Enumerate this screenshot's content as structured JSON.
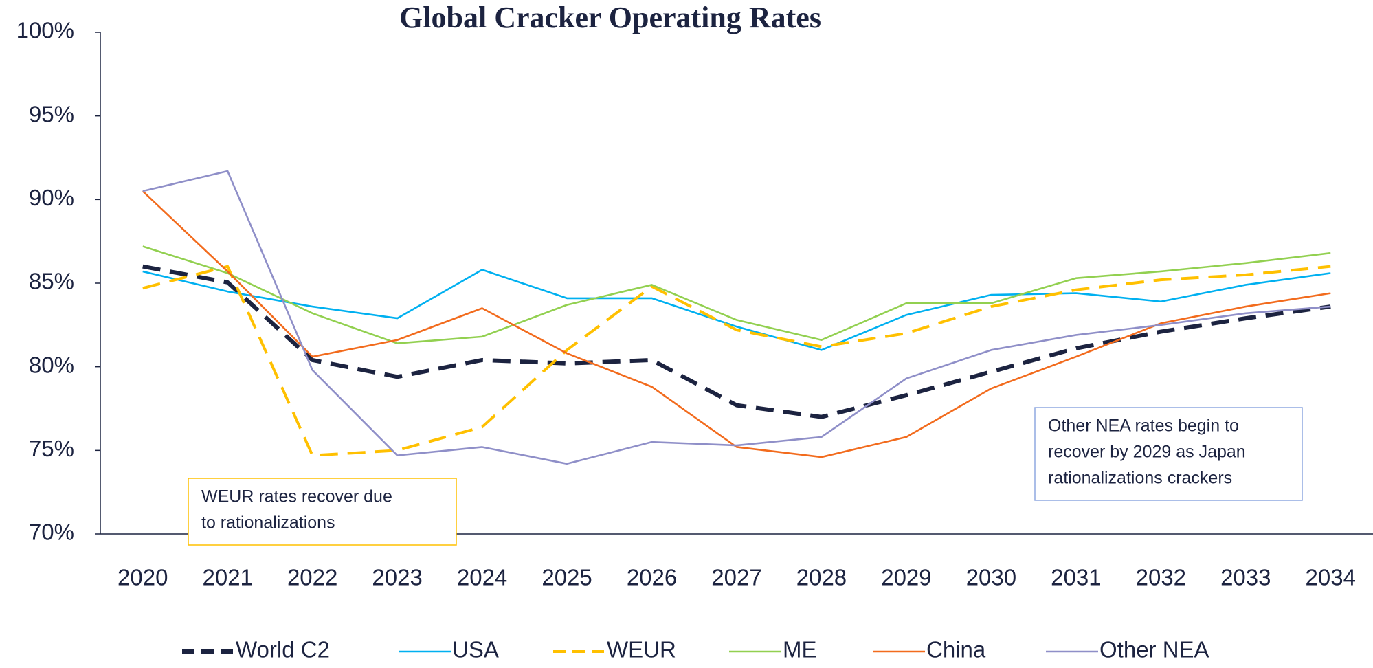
{
  "chart_data": {
    "type": "line",
    "title": "Global Cracker Operating Rates",
    "categories": [
      "2020",
      "2021",
      "2022",
      "2023",
      "2024",
      "2025",
      "2026",
      "2027",
      "2028",
      "2029",
      "2030",
      "2031",
      "2032",
      "2033",
      "2034"
    ],
    "series": [
      {
        "name": "World C2",
        "color": "#1c2340",
        "style": "dashed",
        "values": [
          86.0,
          85.05,
          80.4,
          79.4,
          80.4,
          80.2,
          80.4,
          77.7,
          77.0,
          78.3,
          79.7,
          81.1,
          82.1,
          82.9,
          83.6
        ]
      },
      {
        "name": "USA",
        "color": "#00b0f0",
        "style": "solid",
        "values": [
          85.7,
          84.5,
          83.6,
          82.9,
          85.8,
          84.1,
          84.1,
          82.4,
          81.0,
          83.1,
          84.3,
          84.4,
          83.9,
          84.9,
          85.6
        ]
      },
      {
        "name": "WEUR",
        "color": "#ffc000",
        "style": "dashed",
        "values": [
          84.7,
          86.0,
          74.7,
          75.0,
          76.4,
          81.0,
          84.8,
          82.2,
          81.2,
          82.0,
          83.6,
          84.6,
          85.2,
          85.5,
          86.0
        ]
      },
      {
        "name": "ME",
        "color": "#92d050",
        "style": "solid",
        "values": [
          87.2,
          85.6,
          83.2,
          81.4,
          81.8,
          83.7,
          84.9,
          82.8,
          81.6,
          83.8,
          83.8,
          85.3,
          85.7,
          86.2,
          86.8
        ]
      },
      {
        "name": "China",
        "color": "#f26b1d",
        "style": "solid",
        "values": [
          90.5,
          85.7,
          80.6,
          81.6,
          83.5,
          80.8,
          78.8,
          75.2,
          74.6,
          75.8,
          78.7,
          80.6,
          82.6,
          83.6,
          84.4
        ]
      },
      {
        "name": "Other NEA",
        "color": "#8f8fc8",
        "style": "solid",
        "values": [
          90.5,
          91.7,
          79.8,
          74.7,
          75.2,
          74.2,
          75.5,
          75.3,
          75.8,
          79.3,
          81.0,
          81.9,
          82.5,
          83.2,
          83.6
        ]
      }
    ],
    "ylim": [
      70,
      100
    ],
    "yticks": [
      {
        "value": 70,
        "label": "70%"
      },
      {
        "value": 75,
        "label": "75%"
      },
      {
        "value": 80,
        "label": "80%"
      },
      {
        "value": 85,
        "label": "85%"
      },
      {
        "value": 90,
        "label": "90%"
      },
      {
        "value": 95,
        "label": "95%"
      },
      {
        "value": 100,
        "label": "100%"
      }
    ],
    "grid": false,
    "legend": "bottom",
    "annotations": [
      {
        "lines": [
          "WEUR rates recover due",
          "to rationalizations"
        ],
        "color": "#ffc000"
      },
      {
        "lines": [
          "Other NEA  rates begin to",
          "recover by 2029 as Japan",
          "rationalizations crackers"
        ],
        "color": "#8fa8e0"
      }
    ]
  }
}
